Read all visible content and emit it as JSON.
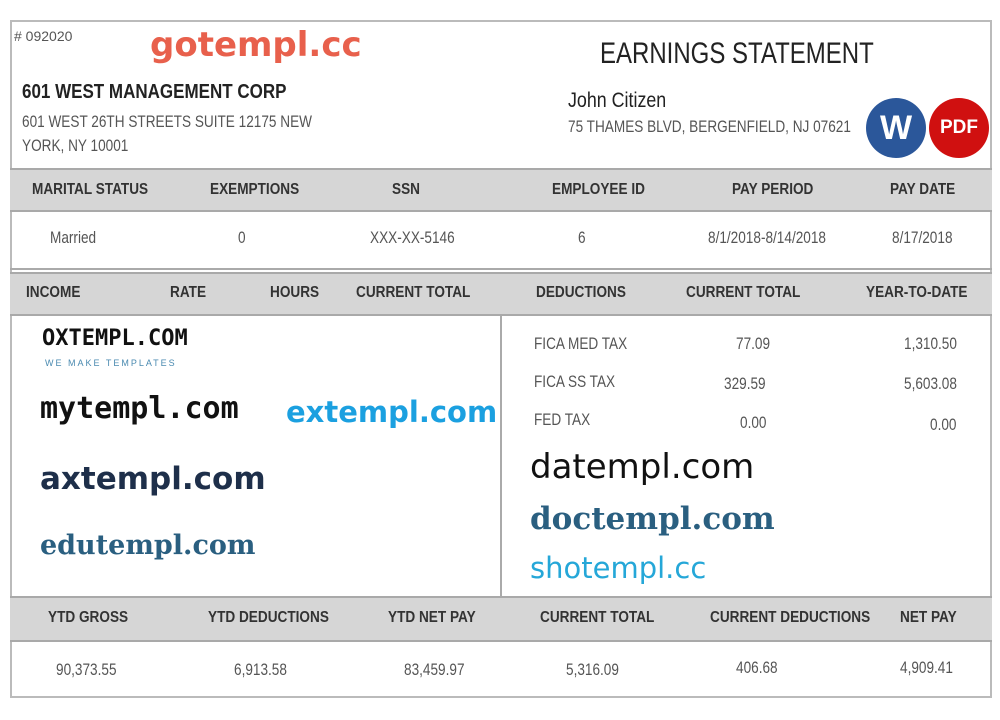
{
  "doc": {
    "number": "# 092020",
    "title": "EARNINGS STATEMENT"
  },
  "employer": {
    "name": "601 WEST MANAGEMENT CORP",
    "address_line1": "601 WEST 26TH STREETS SUITE 12175 NEW",
    "address_line2": "YORK, NY 10001"
  },
  "employee": {
    "name": "John Citizen",
    "address": "75 THAMES BLVD, BERGENFIELD, NJ 07621"
  },
  "info": {
    "headers": [
      "MARITAL STATUS",
      "EXEMPTIONS",
      "SSN",
      "EMPLOYEE ID",
      "PAY PERIOD",
      "PAY DATE"
    ],
    "values": [
      "Married",
      "0",
      "XXX-XX-5146",
      "6",
      "8/1/2018-8/14/2018",
      "8/17/2018"
    ]
  },
  "earnings": {
    "headers": [
      "INCOME",
      "RATE",
      "HOURS",
      "CURRENT TOTAL"
    ]
  },
  "deductions": {
    "headers": [
      "DEDUCTIONS",
      "CURRENT TOTAL",
      "YEAR-TO-DATE"
    ],
    "rows": [
      [
        "FICA MED TAX",
        "77.09",
        "1,310.50"
      ],
      [
        "FICA SS TAX",
        "329.59",
        "5,603.08"
      ],
      [
        "FED TAX",
        "0.00",
        "0.00"
      ]
    ]
  },
  "summary": {
    "headers": [
      "YTD GROSS",
      "YTD DEDUCTIONS",
      "YTD NET PAY",
      "CURRENT TOTAL",
      "CURRENT DEDUCTIONS",
      "NET PAY"
    ],
    "values": [
      "90,373.55",
      "6,913.58",
      "83,459.97",
      "5,316.09",
      "406.68",
      "4,909.41"
    ]
  },
  "badges": {
    "word": "W",
    "pdf": "PDF",
    "word_color": "#2b579a",
    "pdf_color": "#d01010"
  },
  "watermarks": [
    "gotempl.cc",
    "shotempl.cc",
    "OXTEMPL.COM",
    "WE MAKE TEMPLATES",
    "mytempl.com",
    "datempl.com",
    "doctempl.com",
    "edutempl.com",
    "axtempl.com",
    "extempl.com"
  ]
}
